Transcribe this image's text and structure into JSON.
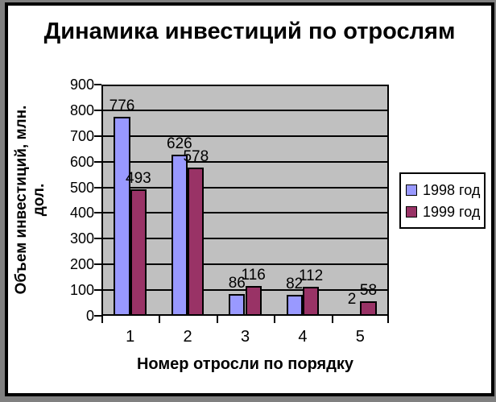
{
  "window": {
    "outer_background": "#808080",
    "frame_border_color": "#000000",
    "frame_background": "#FFFFFF"
  },
  "chart_data": {
    "type": "bar",
    "title": "Динамика инвестиций по отрослям",
    "xlabel": "Номер отросли по порядку",
    "ylabel": "Объем инвестиций, млн. дол.",
    "ylabel_lines": [
      "Объем инвестиций, млн.",
      "дол."
    ],
    "categories": [
      "1",
      "2",
      "3",
      "4",
      "5"
    ],
    "series": [
      {
        "name": "1998 год",
        "color": "#9999FF",
        "values": [
          776,
          626,
          86,
          82,
          2
        ]
      },
      {
        "name": "1999 год",
        "color": "#993366",
        "values": [
          493,
          578,
          116,
          112,
          58
        ]
      }
    ],
    "data_labels_shown": true,
    "ylim": [
      0,
      900
    ],
    "ytick_step": 100,
    "yticks": [
      "900",
      "800",
      "700",
      "600",
      "500",
      "400",
      "300",
      "200",
      "100",
      "0"
    ],
    "plot_background": "#C0C0C0",
    "grid": true,
    "gridline_color": "#000000",
    "legend_position": "right"
  }
}
